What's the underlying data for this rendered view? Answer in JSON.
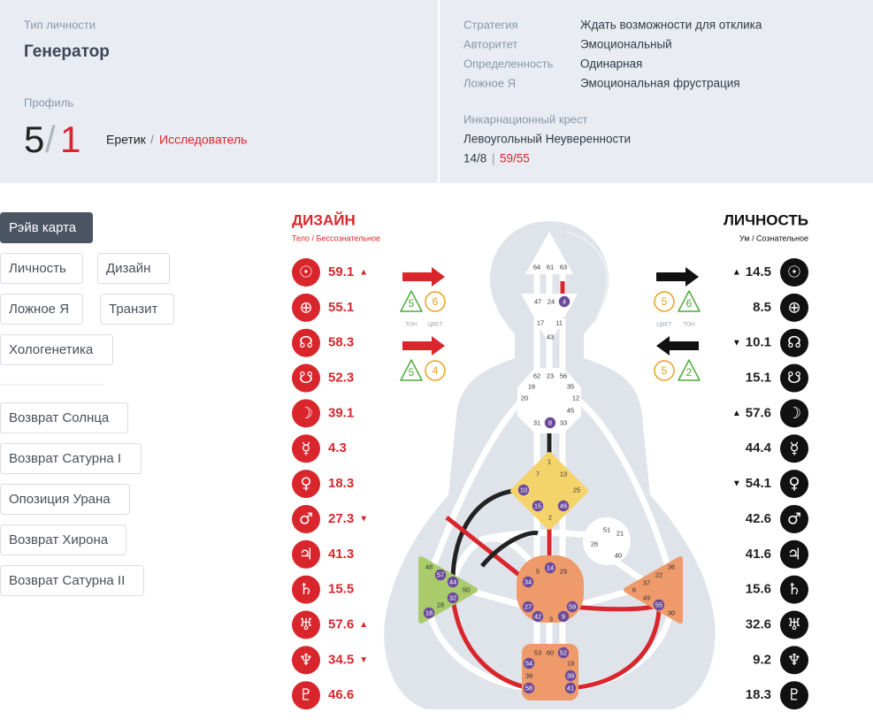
{
  "header": {
    "type_label": "Тип личности",
    "type": "Генератор",
    "profile_label": "Профиль",
    "profile_line_1": "5",
    "profile_slash": "/",
    "profile_line_2": "1",
    "profile_role_1": "Еретик",
    "profile_role_sep": "/",
    "profile_role_2": "Исследователь"
  },
  "details": {
    "rows": [
      [
        "Стратегия",
        "Ждать возможности для отклика"
      ],
      [
        "Авторитет",
        "Эмоциональный"
      ],
      [
        "Определенность",
        "Одинарная"
      ],
      [
        "Ложное Я",
        "Эмоциональная фрустрация"
      ]
    ],
    "cross_label": "Инкарнационный крест",
    "cross_name": "Левоугольный Неуверенности",
    "cross_gates_1": "14/8",
    "cross_sep": "|",
    "cross_gates_2": "59/55"
  },
  "menu": {
    "primary": [
      "Рэйв карта",
      "Личность",
      "Дизайн",
      "Ложное Я",
      "Транзит",
      "Хологенетика"
    ],
    "returns": [
      "Возврат Солнца",
      "Возврат Сатурна I",
      "Опозиция Урана",
      "Возврат Хирона",
      "Возврат Сатурна II"
    ]
  },
  "planets": [
    "☉",
    "⊕",
    "☊",
    "☋",
    "☽",
    "☿",
    "♀",
    "♂",
    "♃",
    "♄",
    "♅",
    "♆",
    "♇"
  ],
  "design": {
    "title": "ДИЗАЙН",
    "subtitle": "Тело / Бессознательное",
    "rows": [
      {
        "value": 59.1,
        "mark": "▲"
      },
      {
        "value": 55.1
      },
      {
        "value": 58.3
      },
      {
        "value": 52.3
      },
      {
        "value": 39.1
      },
      {
        "value": 4.3
      },
      {
        "value": 18.3
      },
      {
        "value": 27.3,
        "mark": "▼"
      },
      {
        "value": 41.3
      },
      {
        "value": 15.5
      },
      {
        "value": 57.6,
        "mark": "▲"
      },
      {
        "value": 34.5,
        "mark": "▼"
      },
      {
        "value": 46.6
      }
    ]
  },
  "personality": {
    "title": "ЛИЧНОСТЬ",
    "subtitle": "Ум / Сознательное",
    "rows": [
      {
        "value": 14.5,
        "mark": "▲"
      },
      {
        "value": 8.5
      },
      {
        "value": 10.1,
        "mark": "▼"
      },
      {
        "value": 15.1
      },
      {
        "value": 57.6,
        "mark": "▲"
      },
      {
        "value": 44.4
      },
      {
        "value": 54.1,
        "mark": "▼"
      },
      {
        "value": 42.6
      },
      {
        "value": 41.6
      },
      {
        "value": 15.6
      },
      {
        "value": 32.6
      },
      {
        "value": 9.2
      },
      {
        "value": 18.3
      }
    ]
  },
  "variables": {
    "tone_label": "ТОН",
    "color_label": "ЦВЕТ",
    "design": [
      {
        "tone": 5,
        "color": 6
      },
      {
        "tone": 5,
        "color": 4
      }
    ],
    "personality": [
      {
        "color": 5,
        "tone": 6
      },
      {
        "color": 5,
        "tone": 2
      }
    ]
  },
  "bodygraph": {
    "head": [
      {
        "gate": 64
      },
      {
        "gate": 61
      },
      {
        "gate": 63
      }
    ],
    "ajna": [
      {
        "gate": 47
      },
      {
        "gate": 24
      },
      {
        "gate": 4,
        "active": true
      },
      {
        "gate": 17
      },
      {
        "gate": 11
      },
      {
        "gate": 43
      }
    ],
    "throat": [
      {
        "gate": 62
      },
      {
        "gate": 23
      },
      {
        "gate": 56
      },
      {
        "gate": 16
      },
      {
        "gate": 35
      },
      {
        "gate": 20
      },
      {
        "gate": 12
      },
      {
        "gate": 45
      },
      {
        "gate": 31
      },
      {
        "gate": 8,
        "active": true
      },
      {
        "gate": 33
      }
    ],
    "g": [
      {
        "gate": 1
      },
      {
        "gate": 7
      },
      {
        "gate": 13
      },
      {
        "gate": 10,
        "active": true
      },
      {
        "gate": 25
      },
      {
        "gate": 15,
        "active": true
      },
      {
        "gate": 46,
        "active": true
      },
      {
        "gate": 2
      }
    ],
    "ego": [
      {
        "gate": 51
      },
      {
        "gate": 21
      },
      {
        "gate": 26
      },
      {
        "gate": 40
      }
    ],
    "spleen": [
      {
        "gate": 48
      },
      {
        "gate": 57,
        "active": true
      },
      {
        "gate": 44,
        "active": true
      },
      {
        "gate": 50
      },
      {
        "gate": 32,
        "active": true
      },
      {
        "gate": 28
      },
      {
        "gate": 18,
        "active": true
      }
    ],
    "sacral": [
      {
        "gate": 5
      },
      {
        "gate": 14,
        "active": true
      },
      {
        "gate": 29
      },
      {
        "gate": 34,
        "active": true
      },
      {
        "gate": 27,
        "active": true
      },
      {
        "gate": 42,
        "active": true
      },
      {
        "gate": 3
      },
      {
        "gate": 59,
        "active": true
      },
      {
        "gate": 9,
        "active": true
      }
    ],
    "solar": [
      {
        "gate": 36
      },
      {
        "gate": 22
      },
      {
        "gate": 37
      },
      {
        "gate": 6
      },
      {
        "gate": 49
      },
      {
        "gate": 55,
        "active": true
      },
      {
        "gate": 30
      }
    ],
    "root": [
      {
        "gate": 53
      },
      {
        "gate": 60
      },
      {
        "gate": 52,
        "active": true
      },
      {
        "gate": 54,
        "active": true
      },
      {
        "gate": 19
      },
      {
        "gate": 38
      },
      {
        "gate": 39,
        "active": true
      },
      {
        "gate": 58,
        "active": true
      },
      {
        "gate": 41,
        "active": true
      }
    ]
  }
}
